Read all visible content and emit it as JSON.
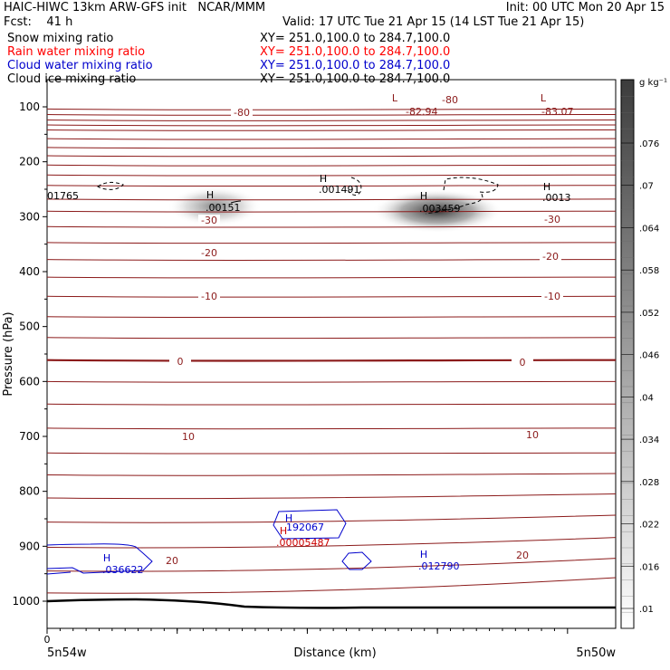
{
  "header": {
    "line1_left": "HAIC-HIWC 13km ARW-GFS init   NCAR/MMM",
    "line1_right": "Init: 00 UTC Mon 20 Apr 15",
    "line2_left": "Fcst:    41 h",
    "line2_right": "Valid: 17 UTC Tue 21 Apr 15 (14 LST Tue 21 Apr 15)"
  },
  "fields": [
    {
      "name": "Snow mixing ratio",
      "xy": "XY= 251.0,100.0 to 284.7,100.0",
      "color": "#000000"
    },
    {
      "name": "Rain water mixing ratio",
      "xy": "XY= 251.0,100.0 to 284.7,100.0",
      "color": "#ff0000"
    },
    {
      "name": "Cloud water mixing ratio",
      "xy": "XY= 251.0,100.0 to 284.7,100.0",
      "color": "#0000cc"
    },
    {
      "name": "Cloud ice mixing ratio",
      "xy": "XY= 251.0,100.0 to 284.7,100.0",
      "color": "#000000"
    }
  ],
  "chart_data": {
    "type": "contour_cross_section",
    "ylabel": "Pressure (hPa)",
    "xlabel": "Distance (km)",
    "y_ticks": [
      100,
      200,
      300,
      400,
      500,
      600,
      700,
      800,
      900,
      1000
    ],
    "ylim": [
      1050,
      50
    ],
    "x_tick_zero_label": "0",
    "x_end_labels": [
      "5n54w",
      "5n50w"
    ],
    "colorbar": {
      "unit": "g kg⁻¹",
      "ticks": [
        ".01",
        ".016",
        ".022",
        ".028",
        ".034",
        ".04",
        ".046",
        ".052",
        ".058",
        ".064",
        ".07",
        ".076"
      ]
    },
    "temperature_labels": [
      "-80",
      "-30",
      "-20",
      "-10",
      "0",
      "10",
      "20"
    ],
    "extrema": [
      {
        "kind": "L",
        "value": "-82.94",
        "color": "#8b1a1a"
      },
      {
        "kind": "L",
        "value": "-83.07",
        "color": "#8b1a1a"
      },
      {
        "kind": "H",
        "value": ".00151",
        "color": "#000000"
      },
      {
        "kind": "H",
        "value": ".001491",
        "color": "#000000"
      },
      {
        "kind": "H",
        "value": ".003459",
        "color": "#000000"
      },
      {
        "kind": "H",
        "value": ".0013",
        "color": "#000000"
      },
      {
        "kind": "",
        "value": "01765",
        "color": "#000000"
      },
      {
        "kind": "H",
        "value": "192067",
        "color": "#0000cc"
      },
      {
        "kind": "H",
        "value": ".00005487",
        "color": "#cc0000"
      },
      {
        "kind": "H",
        "value": ".036622",
        "color": "#0000cc"
      },
      {
        "kind": "H",
        "value": ".012790",
        "color": "#0000cc"
      }
    ],
    "colors": {
      "isotherm": "#8b1a1a",
      "cloud_water": "#0000cc",
      "rain": "#cc0000",
      "terrain": "#000000"
    }
  }
}
